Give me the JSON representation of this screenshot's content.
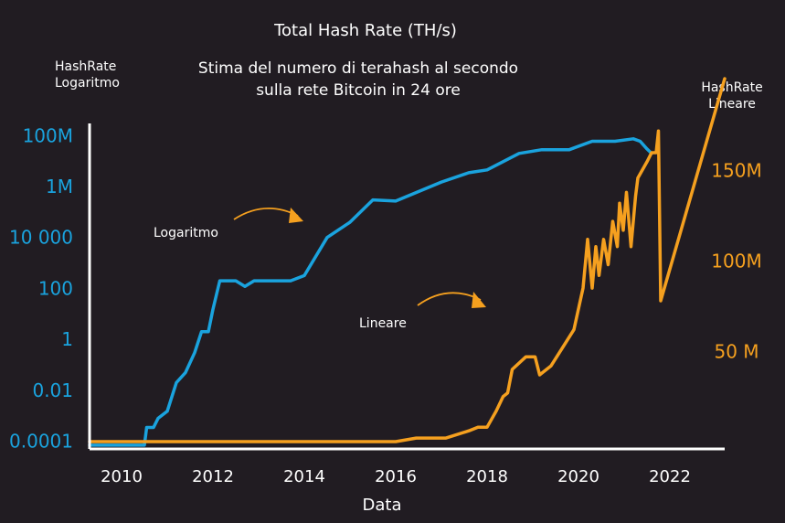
{
  "chart_data": {
    "type": "line",
    "title": "Total Hash Rate (TH/s)",
    "subtitle_lines": [
      "Stima del numero di terahash al secondo",
      "sulla rete Bitcoin in 24 ore"
    ],
    "xlabel": "Data",
    "ylabel_left_lines": [
      "HashRate",
      "Logaritmo"
    ],
    "ylabel_right_lines": [
      "HashRate",
      "Lineare"
    ],
    "x_ticks": [
      "2010",
      "2012",
      "2014",
      "2016",
      "2018",
      "2020",
      "2022"
    ],
    "xlim": [
      2009.3,
      2023.2
    ],
    "left_axis": {
      "scale": "log",
      "ticks": [
        {
          "label": "0.0001",
          "value": 0.0001
        },
        {
          "label": "0.01",
          "value": 0.01
        },
        {
          "label": "1",
          "value": 1
        },
        {
          "label": "100",
          "value": 100
        },
        {
          "label": "10 000",
          "value": 10000
        },
        {
          "label": "1M",
          "value": 1000000
        },
        {
          "label": "100M",
          "value": 100000000
        }
      ],
      "ylim": [
        5e-05,
        300000000
      ]
    },
    "right_axis": {
      "scale": "linear",
      "ticks": [
        {
          "label": "50 M",
          "value": 50
        },
        {
          "label": "100M",
          "value": 100
        },
        {
          "label": "150M",
          "value": 150
        }
      ],
      "ylim": [
        -2,
        201
      ]
    },
    "annotations": [
      {
        "text": "Logaritmo",
        "series": "Logaritmo"
      },
      {
        "text": "Lineare",
        "series": "Lineare"
      }
    ],
    "colors": {
      "log_series": "#1aa3de",
      "linear_series": "#f5a01f",
      "axis": "#ffffff",
      "background": "#211c22"
    },
    "series": [
      {
        "name": "Logaritmo",
        "axis": "left",
        "color": "#1aa3de",
        "points": [
          [
            2009.3,
            7e-05
          ],
          [
            2010.5,
            7e-05
          ],
          [
            2010.55,
            0.00035
          ],
          [
            2010.7,
            0.00035
          ],
          [
            2010.8,
            0.0008
          ],
          [
            2011.0,
            0.0015
          ],
          [
            2011.2,
            0.02
          ],
          [
            2011.4,
            0.05
          ],
          [
            2011.6,
            0.3
          ],
          [
            2011.75,
            2
          ],
          [
            2011.9,
            2
          ],
          [
            2012.0,
            15
          ],
          [
            2012.15,
            200
          ],
          [
            2012.5,
            200
          ],
          [
            2012.7,
            120
          ],
          [
            2012.9,
            200
          ],
          [
            2013.7,
            200
          ],
          [
            2014.0,
            320
          ],
          [
            2014.5,
            10000
          ],
          [
            2015.0,
            40000
          ],
          [
            2015.5,
            300000
          ],
          [
            2016.0,
            270000
          ],
          [
            2017.0,
            1500000
          ],
          [
            2017.6,
            3500000
          ],
          [
            2018.0,
            4500000
          ],
          [
            2018.7,
            20000000
          ],
          [
            2019.2,
            28000000
          ],
          [
            2019.8,
            28000000
          ],
          [
            2020.3,
            60000000
          ],
          [
            2020.8,
            60000000
          ],
          [
            2021.2,
            75000000
          ],
          [
            2021.35,
            60000000
          ],
          [
            2021.5,
            30000000
          ],
          [
            2021.6,
            20000000
          ]
        ]
      },
      {
        "name": "Lineare",
        "axis": "right",
        "color": "#f5a01f",
        "points": [
          [
            2009.3,
            0
          ],
          [
            2016.0,
            0
          ],
          [
            2016.45,
            2
          ],
          [
            2017.1,
            2
          ],
          [
            2017.6,
            6
          ],
          [
            2017.8,
            8
          ],
          [
            2018.0,
            8
          ],
          [
            2018.2,
            17
          ],
          [
            2018.35,
            25
          ],
          [
            2018.45,
            27
          ],
          [
            2018.55,
            40
          ],
          [
            2018.85,
            47
          ],
          [
            2019.05,
            47
          ],
          [
            2019.15,
            37
          ],
          [
            2019.4,
            42
          ],
          [
            2019.9,
            62
          ],
          [
            2020.1,
            85
          ],
          [
            2020.2,
            112
          ],
          [
            2020.3,
            85
          ],
          [
            2020.38,
            108
          ],
          [
            2020.45,
            92
          ],
          [
            2020.55,
            112
          ],
          [
            2020.65,
            98
          ],
          [
            2020.75,
            122
          ],
          [
            2020.85,
            108
          ],
          [
            2020.9,
            132
          ],
          [
            2020.98,
            117
          ],
          [
            2021.05,
            138
          ],
          [
            2021.15,
            108
          ],
          [
            2021.25,
            136
          ],
          [
            2021.3,
            146
          ],
          [
            2021.5,
            155
          ],
          [
            2021.6,
            160
          ],
          [
            2021.7,
            160
          ],
          [
            2021.75,
            172
          ],
          [
            2021.8,
            78
          ],
          [
            2023.2,
            201
          ]
        ]
      }
    ]
  }
}
